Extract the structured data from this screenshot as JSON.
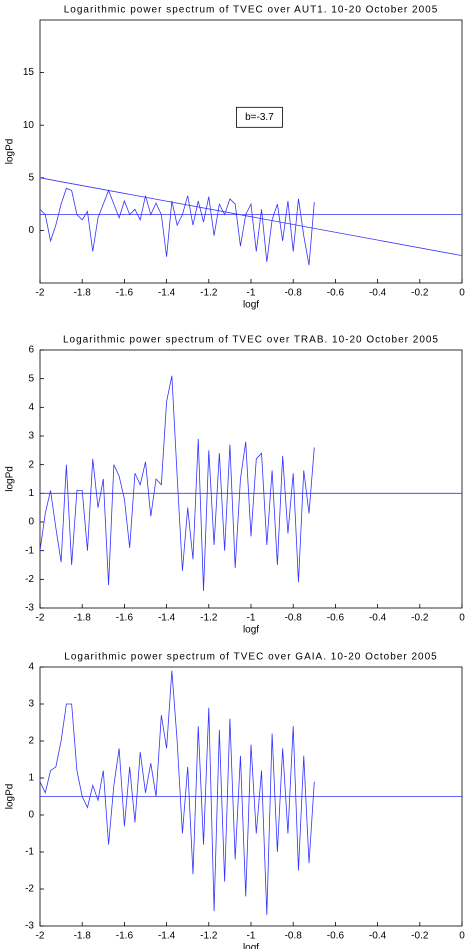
{
  "chart_data": [
    {
      "type": "line",
      "title": "Logarithmic power spectrum of TVEC over AUT1. 10-20 October 2005",
      "xlabel": "logf",
      "ylabel": "logPd",
      "annotation": "b=-3.7",
      "color": "#3333ff",
      "x": [
        -2,
        -1.975,
        -1.95,
        -1.925,
        -1.9,
        -1.875,
        -1.85,
        -1.825,
        -1.8,
        -1.775,
        -1.75,
        -1.725,
        -1.7,
        -1.675,
        -1.65,
        -1.625,
        -1.6,
        -1.575,
        -1.55,
        -1.525,
        -1.5,
        -1.475,
        -1.45,
        -1.425,
        -1.4,
        -1.375,
        -1.35,
        -1.325,
        -1.3,
        -1.275,
        -1.25,
        -1.225,
        -1.2,
        -1.175,
        -1.15,
        -1.125,
        -1.1,
        -1.075,
        -1.05,
        -1.025,
        -1,
        -0.975,
        -0.95,
        -0.925,
        -0.9,
        -0.875,
        -0.85,
        -0.825,
        -0.8,
        -0.775,
        -0.75,
        -0.725,
        -0.7
      ],
      "values": [
        2,
        1.5,
        -1,
        0.5,
        2.5,
        4,
        3.8,
        1.5,
        1,
        1.8,
        -2,
        1.2,
        2.5,
        3.8,
        2.5,
        1.2,
        2.8,
        1.5,
        2,
        1,
        3.3,
        1.5,
        2.6,
        1.5,
        -2.5,
        2.8,
        0.5,
        1.5,
        3.3,
        0.5,
        2.8,
        0.8,
        3.2,
        -0.5,
        2.5,
        1.5,
        3,
        2.5,
        -1.5,
        1.5,
        2.5,
        -2,
        2,
        -3,
        1,
        2.5,
        -1,
        2.8,
        -2,
        3,
        -0.5,
        -3.3,
        2.7
      ],
      "hline": 1.5,
      "fit": {
        "x": [
          -2,
          0
        ],
        "values": [
          5,
          -2.4
        ]
      },
      "xlim": [
        -2,
        0
      ],
      "xticks": [
        -2,
        -1.8,
        -1.6,
        -1.4,
        -1.2,
        -1,
        -0.8,
        -0.6,
        -0.4,
        -0.2,
        0
      ],
      "ylim": [
        -5,
        20
      ],
      "yticks": [
        0,
        5,
        10,
        15
      ]
    },
    {
      "type": "line",
      "title": "Logarithmic power spectrum of TVEC over TRAB. 10-20 October 2005",
      "xlabel": "logf",
      "ylabel": "logPd",
      "color": "#3333ff",
      "x": [
        -2,
        -1.975,
        -1.95,
        -1.925,
        -1.9,
        -1.875,
        -1.85,
        -1.825,
        -1.8,
        -1.775,
        -1.75,
        -1.725,
        -1.7,
        -1.675,
        -1.65,
        -1.625,
        -1.6,
        -1.575,
        -1.55,
        -1.525,
        -1.5,
        -1.475,
        -1.45,
        -1.425,
        -1.4,
        -1.375,
        -1.35,
        -1.325,
        -1.3,
        -1.275,
        -1.25,
        -1.225,
        -1.2,
        -1.175,
        -1.15,
        -1.125,
        -1.1,
        -1.075,
        -1.05,
        -1.025,
        -1,
        -0.975,
        -0.95,
        -0.925,
        -0.9,
        -0.875,
        -0.85,
        -0.825,
        -0.8,
        -0.775,
        -0.75,
        -0.725,
        -0.7
      ],
      "values": [
        -1,
        0.3,
        1.1,
        -0.2,
        -1.4,
        2,
        -1.5,
        1.1,
        1.1,
        -1,
        2.2,
        0.5,
        1.5,
        -2.2,
        2,
        1.6,
        0.8,
        -0.9,
        1.7,
        1.3,
        2.1,
        0.2,
        1.5,
        1.3,
        4.2,
        5.1,
        1.6,
        -1.7,
        0.5,
        -1.3,
        2.9,
        -2.4,
        2.5,
        -0.8,
        2.4,
        -1,
        2.7,
        -1.6,
        1.5,
        2.8,
        -0.5,
        2.2,
        2.4,
        -0.8,
        1.8,
        -1.5,
        2.3,
        -0.4,
        1.7,
        -2.1,
        1.8,
        0.3,
        2.6
      ],
      "hline": 1,
      "xlim": [
        -2,
        0
      ],
      "xticks": [
        -2,
        -1.8,
        -1.6,
        -1.4,
        -1.2,
        -1,
        -0.8,
        -0.6,
        -0.4,
        -0.2,
        0
      ],
      "ylim": [
        -3,
        6
      ],
      "yticks": [
        -3,
        -2,
        -1,
        0,
        1,
        2,
        3,
        4,
        5,
        6
      ]
    },
    {
      "type": "line",
      "title": "Logarithmic power spectrum of TVEC over GAIA. 10-20 October 2005",
      "xlabel": "logf",
      "ylabel": "logPd",
      "color": "#3333ff",
      "x": [
        -2,
        -1.975,
        -1.95,
        -1.925,
        -1.9,
        -1.875,
        -1.85,
        -1.825,
        -1.8,
        -1.775,
        -1.75,
        -1.725,
        -1.7,
        -1.675,
        -1.65,
        -1.625,
        -1.6,
        -1.575,
        -1.55,
        -1.525,
        -1.5,
        -1.475,
        -1.45,
        -1.425,
        -1.4,
        -1.375,
        -1.35,
        -1.325,
        -1.3,
        -1.275,
        -1.25,
        -1.225,
        -1.2,
        -1.175,
        -1.15,
        -1.125,
        -1.1,
        -1.075,
        -1.05,
        -1.025,
        -1,
        -0.975,
        -0.95,
        -0.925,
        -0.9,
        -0.875,
        -0.85,
        -0.825,
        -0.8,
        -0.775,
        -0.75,
        -0.725,
        -0.7
      ],
      "values": [
        0.9,
        0.6,
        1.2,
        1.3,
        2,
        3,
        3,
        1.2,
        0.5,
        0.2,
        0.8,
        0.4,
        1.2,
        -0.8,
        0.8,
        1.8,
        -0.3,
        1.3,
        -0.2,
        1.7,
        0.6,
        1.4,
        0.5,
        2.7,
        1.8,
        3.9,
        2,
        -0.5,
        1.3,
        -1.6,
        2.4,
        -0.8,
        2.9,
        -2.6,
        2.3,
        -1.8,
        2.6,
        -1.2,
        1.6,
        -2.2,
        1.9,
        -0.5,
        1.2,
        -2.7,
        2.2,
        -1,
        1.8,
        -0.5,
        2.4,
        -1.5,
        1.6,
        -1.3,
        0.9
      ],
      "hline": 0.5,
      "xlim": [
        -2,
        0
      ],
      "xticks": [
        -2,
        -1.8,
        -1.6,
        -1.4,
        -1.2,
        -1,
        -0.8,
        -0.6,
        -0.4,
        -0.2,
        0
      ],
      "ylim": [
        -3,
        4
      ],
      "yticks": [
        -3,
        -2,
        -1,
        0,
        1,
        2,
        3,
        4
      ]
    }
  ]
}
